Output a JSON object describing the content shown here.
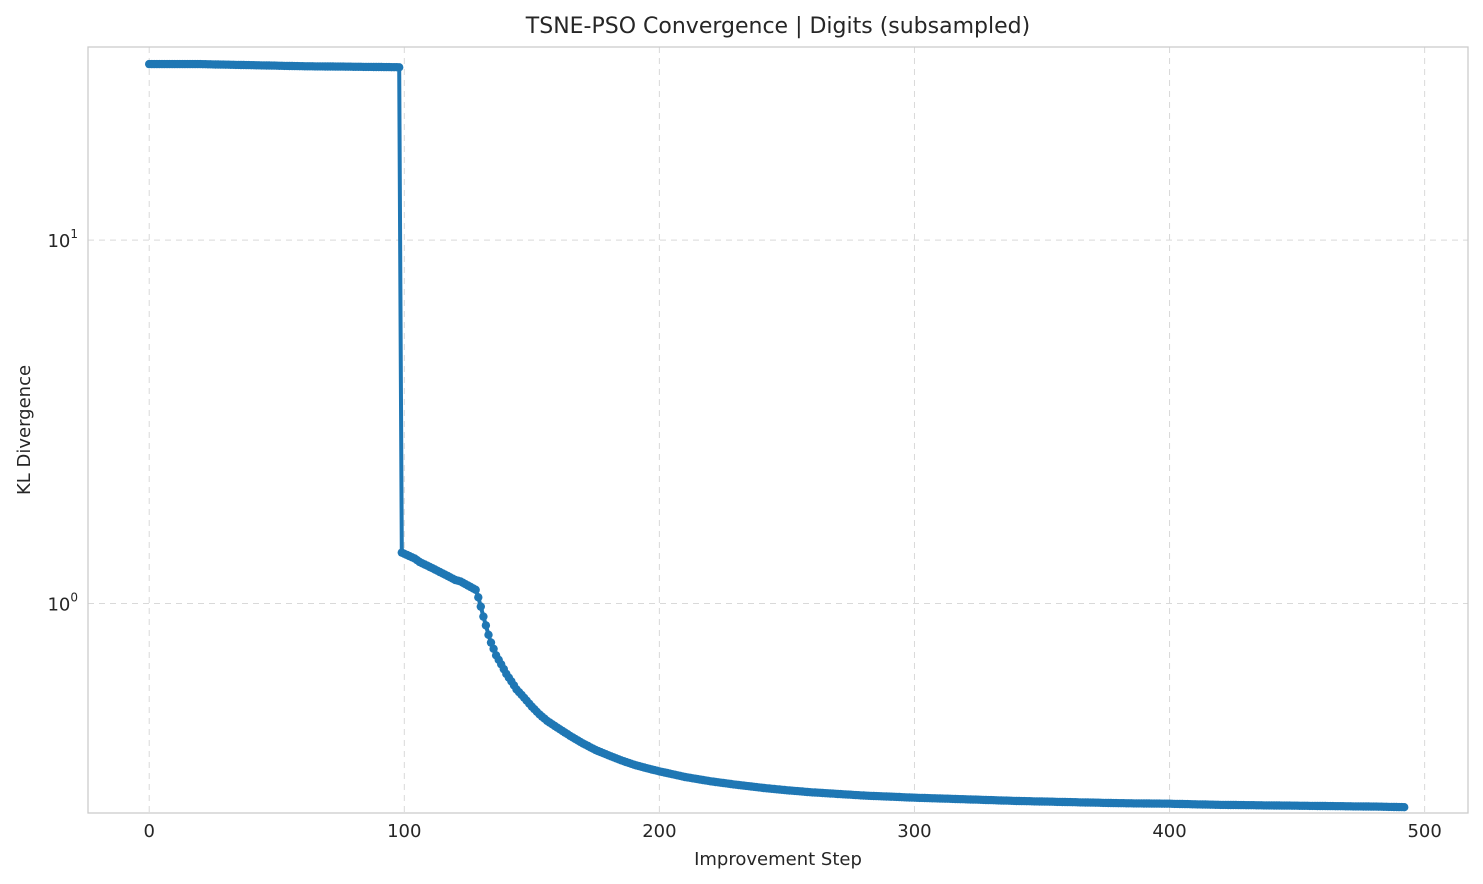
{
  "chart_data": {
    "type": "line",
    "title": "TSNE-PSO Convergence | Digits (subsampled)",
    "xlabel": "Improvement Step",
    "ylabel": "KL Divergence",
    "y_scale": "log",
    "xlim": [
      -24,
      517
    ],
    "ylim": [
      0.265,
      34
    ],
    "grid": true,
    "xticks": [
      0,
      100,
      200,
      300,
      400,
      500
    ],
    "xtick_labels": [
      "0",
      "100",
      "200",
      "300",
      "400",
      "500"
    ],
    "yticks": [
      1,
      10
    ],
    "ytick_labels": [
      {
        "base": "10",
        "exp": "0"
      },
      {
        "base": "10",
        "exp": "1"
      }
    ],
    "colors": {
      "line": "#1f77b4",
      "grid": "#d9d9d9",
      "frame": "#cccccc"
    },
    "x": [
      0,
      10,
      20,
      30,
      40,
      50,
      60,
      70,
      80,
      90,
      98,
      99,
      100,
      102,
      104,
      106,
      108,
      110,
      112,
      114,
      116,
      118,
      120,
      122,
      124,
      126,
      128,
      129,
      130,
      131,
      132,
      133,
      134,
      135,
      136,
      138,
      140,
      142,
      144,
      146,
      148,
      150,
      153,
      156,
      160,
      165,
      170,
      175,
      180,
      185,
      190,
      195,
      200,
      210,
      220,
      230,
      240,
      250,
      260,
      270,
      280,
      290,
      300,
      320,
      340,
      360,
      380,
      400,
      420,
      440,
      460,
      480,
      492
    ],
    "y": [
      30.5,
      30.5,
      30.5,
      30.4,
      30.3,
      30.2,
      30.1,
      30.05,
      30.0,
      29.95,
      29.9,
      1.38,
      1.37,
      1.35,
      1.33,
      1.3,
      1.28,
      1.26,
      1.24,
      1.22,
      1.2,
      1.18,
      1.16,
      1.15,
      1.13,
      1.11,
      1.09,
      1.04,
      0.98,
      0.92,
      0.87,
      0.82,
      0.78,
      0.75,
      0.72,
      0.68,
      0.64,
      0.61,
      0.58,
      0.56,
      0.54,
      0.52,
      0.495,
      0.475,
      0.455,
      0.432,
      0.412,
      0.395,
      0.382,
      0.37,
      0.36,
      0.352,
      0.345,
      0.333,
      0.324,
      0.317,
      0.311,
      0.306,
      0.302,
      0.299,
      0.296,
      0.294,
      0.292,
      0.289,
      0.286,
      0.284,
      0.282,
      0.281,
      0.279,
      0.278,
      0.277,
      0.276,
      0.275
    ]
  }
}
